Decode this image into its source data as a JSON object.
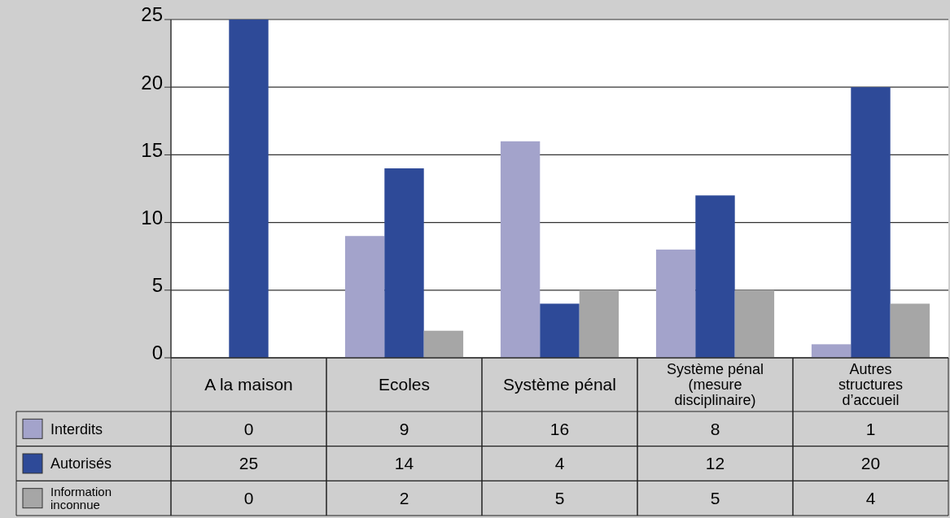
{
  "chart_data": {
    "type": "bar",
    "categories": [
      "A la maison",
      "Ecoles",
      "Système pénal",
      "Système pénal (mesure disciplinaire)",
      "Autres structures d’accueil"
    ],
    "series": [
      {
        "name": "Interdits",
        "color": "#a3a3cb",
        "values": [
          0,
          9,
          16,
          8,
          1
        ]
      },
      {
        "name": "Autorisés",
        "color": "#2e4a98",
        "values": [
          25,
          14,
          4,
          12,
          20
        ]
      },
      {
        "name": "Information inconnue",
        "color": "#a6a6a6",
        "values": [
          0,
          2,
          5,
          5,
          4
        ]
      }
    ],
    "ylim": [
      0,
      25
    ],
    "yticks": [
      0,
      5,
      10,
      15,
      20,
      25
    ],
    "grid": "y",
    "data_labels": true,
    "legend": "bottom left"
  }
}
